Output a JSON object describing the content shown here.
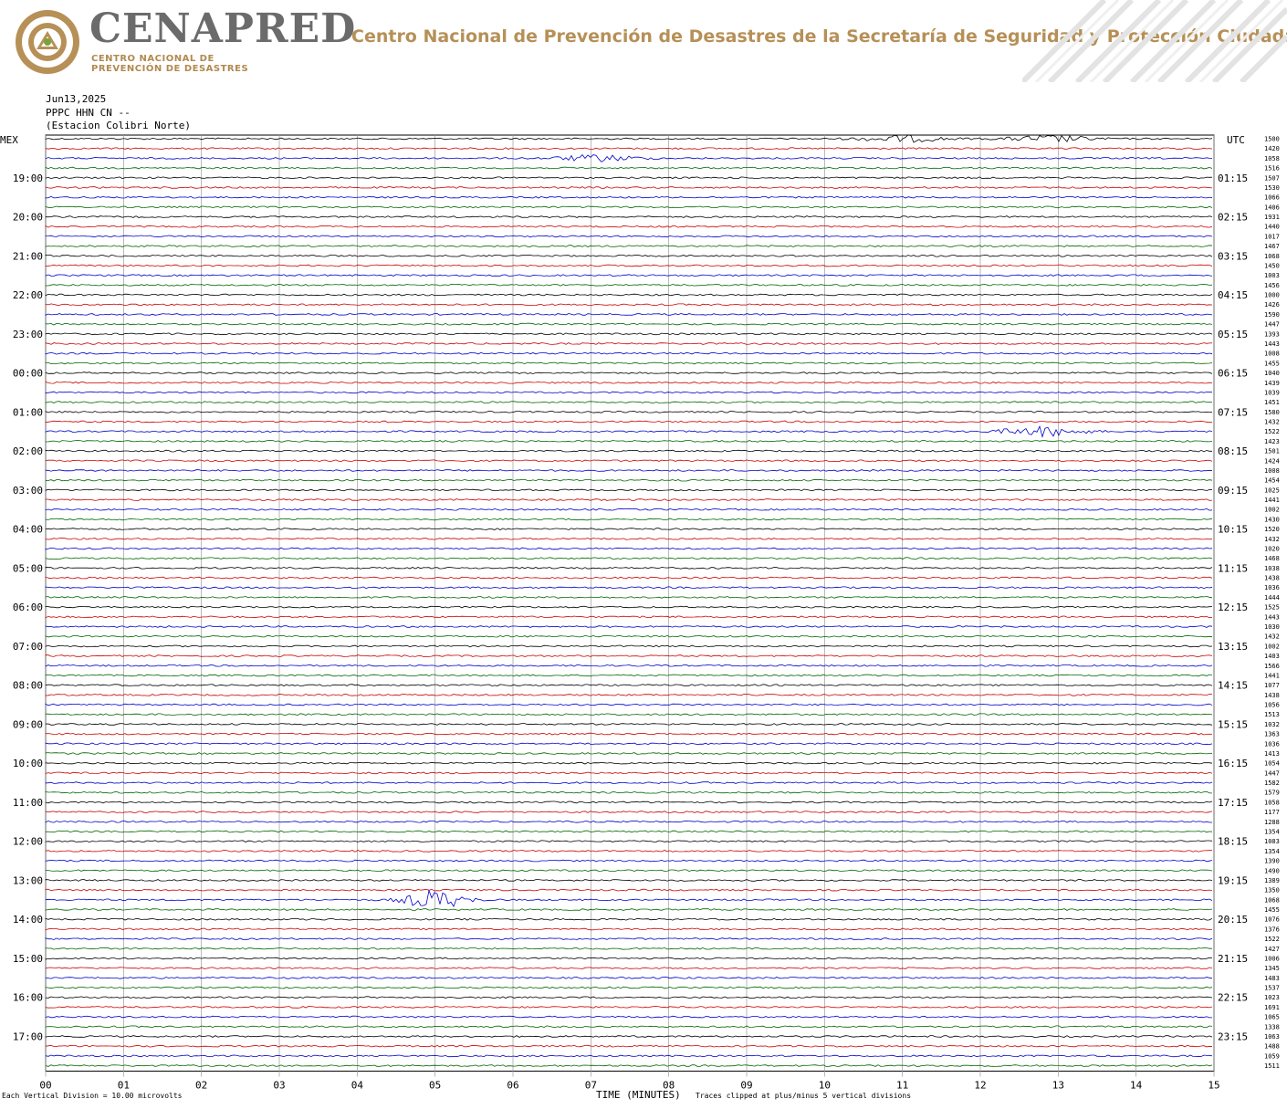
{
  "header": {
    "brand": "CENAPRED",
    "brand_sub_line1": "CENTRO NACIONAL DE",
    "brand_sub_line2": "PREVENCIÓN DE DESASTRES",
    "org_title": "Centro Nacional de Prevención de Desastres de la Secretaría de Seguridad y Protección Ciudadana",
    "brand_color": "#6b6b6b",
    "accent_color": "#b69057"
  },
  "meta": {
    "date": "Jun13,2025",
    "channel": "PPPC HHN CN --",
    "station": "(Estacion Colibri Norte)"
  },
  "chart_data": {
    "type": "line",
    "left_axis_title": "MEX",
    "right_axis_title": "UTC",
    "xlabel": "TIME (MINUTES)",
    "x_ticks": [
      "00",
      "01",
      "02",
      "03",
      "04",
      "05",
      "06",
      "07",
      "08",
      "09",
      "10",
      "11",
      "12",
      "13",
      "14",
      "15"
    ],
    "xlim": [
      0,
      15
    ],
    "grid": true,
    "trace_colors": [
      "#000000",
      "#cc0000",
      "#0000cc",
      "#006600"
    ],
    "left_hour_labels": [
      "19:00",
      "20:00",
      "21:00",
      "22:00",
      "23:00",
      "00:00",
      "01:00",
      "02:00",
      "03:00",
      "04:00",
      "05:00",
      "06:00",
      "07:00",
      "08:00",
      "09:00",
      "10:00",
      "11:00",
      "12:00",
      "13:00",
      "14:00",
      "15:00",
      "16:00",
      "17:00"
    ],
    "right_hour_labels": [
      "01:15",
      "02:15",
      "03:15",
      "04:15",
      "05:15",
      "06:15",
      "07:15",
      "08:15",
      "09:15",
      "10:15",
      "11:15",
      "12:15",
      "13:15",
      "14:15",
      "15:15",
      "16:15",
      "17:15",
      "18:15",
      "19:15",
      "20:15",
      "21:15",
      "22:15",
      "23:15"
    ],
    "trace_counts": [
      "1500",
      "1420",
      "1058",
      "1516",
      "1507",
      "1530",
      "1066",
      "1406",
      "1931",
      "1440",
      "1017",
      "1467",
      "1068",
      "1450",
      "1003",
      "1456",
      "1000",
      "1426",
      "1590",
      "1447",
      "1393",
      "1443",
      "1008",
      "1455",
      "1040",
      "1439",
      "1039",
      "1451",
      "1580",
      "1432",
      "1522",
      "1423",
      "1501",
      "1424",
      "1008",
      "1454",
      "1025",
      "1441",
      "1002",
      "1430",
      "1520",
      "1432",
      "1020",
      "1468",
      "1038",
      "1438",
      "1036",
      "1444",
      "1525",
      "1443",
      "1030",
      "1432",
      "1002",
      "1403",
      "1566",
      "1441",
      "1077",
      "1438",
      "1056",
      "1513",
      "1032",
      "1363",
      "1036",
      "1413",
      "1054",
      "1447",
      "1582",
      "1579",
      "1058",
      "1177",
      "1288",
      "1354",
      "1083",
      "1354",
      "1390",
      "1490",
      "1389",
      "1350",
      "1068",
      "1455",
      "1076",
      "1376",
      "1522",
      "1427",
      "1006",
      "1345",
      "1483",
      "1537",
      "1023",
      "1691",
      "1065",
      "1338",
      "1063",
      "1488",
      "1059",
      "1511"
    ],
    "events": [
      {
        "trace": 0,
        "minute": 12.9,
        "amplitude": "low"
      },
      {
        "trace": 0,
        "minute": 11.0,
        "amplitude": "low"
      },
      {
        "trace": 2,
        "minute": 7.1,
        "amplitude": "low"
      },
      {
        "trace": 30,
        "minute": 12.8,
        "amplitude": "medium"
      },
      {
        "trace": 78,
        "minute": 5.0,
        "amplitude": "high"
      }
    ],
    "scale_note": "Each Vertical Division =   10.00 microvolts",
    "clip_note": "Traces clipped at plus/minus 5 vertical divisions"
  }
}
